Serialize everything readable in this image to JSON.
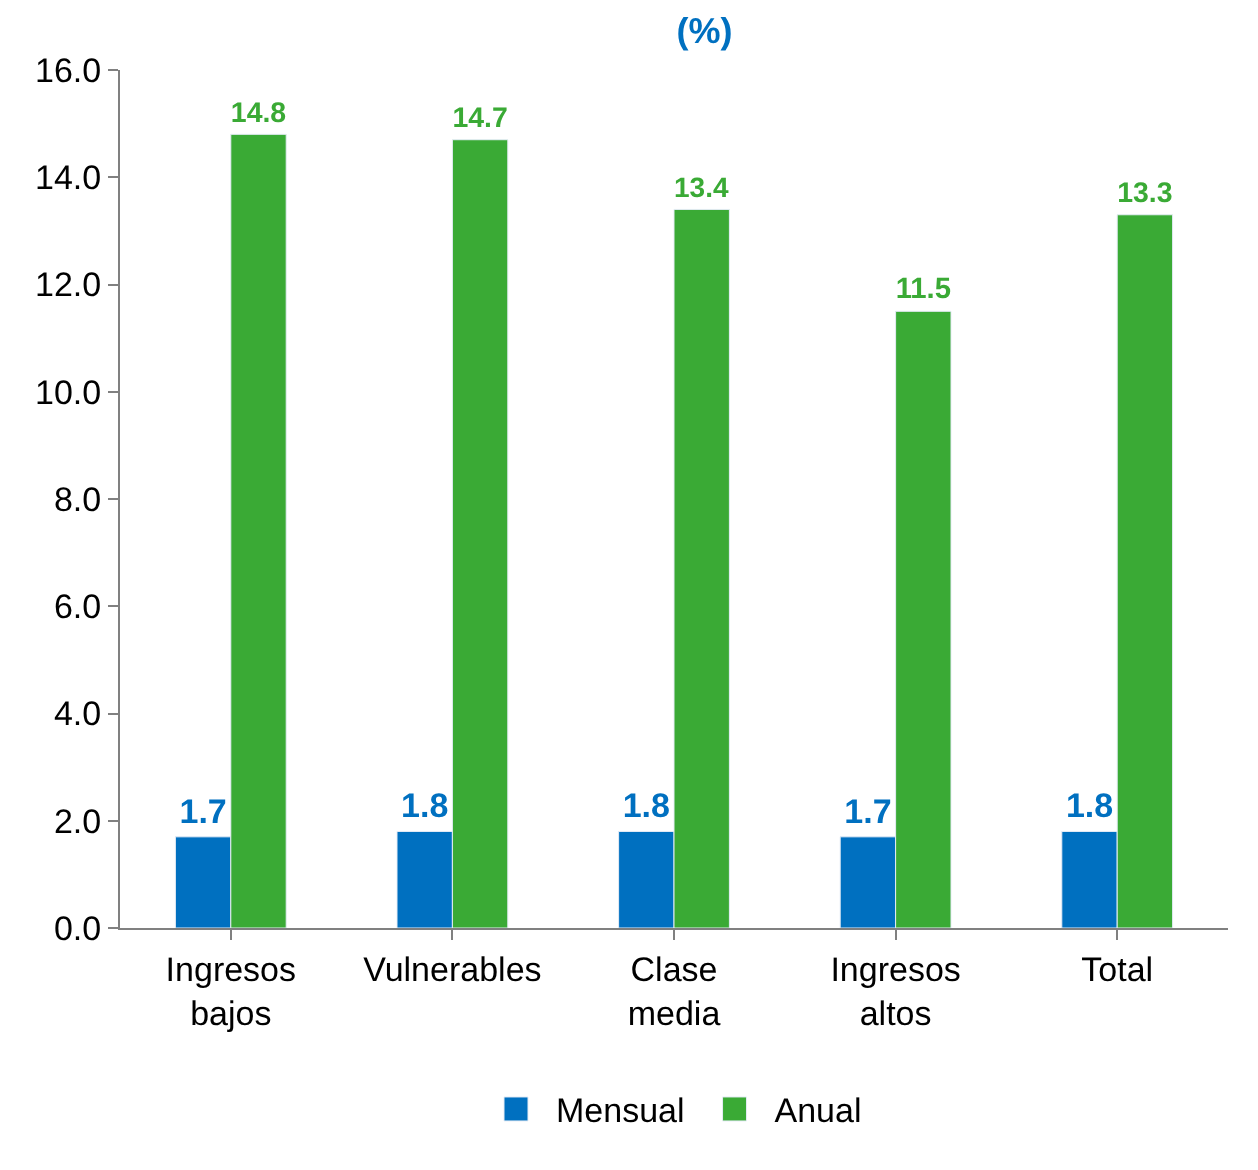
{
  "chart_data": {
    "type": "bar",
    "title": "(%)",
    "categories": [
      "Ingresos bajos",
      "Vulnerables",
      "Clase media",
      "Ingresos altos",
      "Total"
    ],
    "series": [
      {
        "name": "Mensual",
        "color": "#0070c0",
        "values": [
          1.7,
          1.8,
          1.8,
          1.7,
          1.8
        ]
      },
      {
        "name": "Anual",
        "color": "#3aaa35",
        "values": [
          14.8,
          14.7,
          13.4,
          11.5,
          13.3
        ]
      }
    ],
    "ylim": [
      0,
      16
    ],
    "yticks": [
      {
        "value": 0,
        "label": "0.0"
      },
      {
        "value": 2,
        "label": "2.0"
      },
      {
        "value": 4,
        "label": "4.0"
      },
      {
        "value": 6,
        "label": "6.0"
      },
      {
        "value": 8,
        "label": "8.0"
      },
      {
        "value": 10,
        "label": "10.0"
      },
      {
        "value": 12,
        "label": "12.0"
      },
      {
        "value": 14,
        "label": "14.0"
      },
      {
        "value": 16,
        "label": "16.0"
      }
    ],
    "data_labels": true,
    "legend": "bottom"
  }
}
